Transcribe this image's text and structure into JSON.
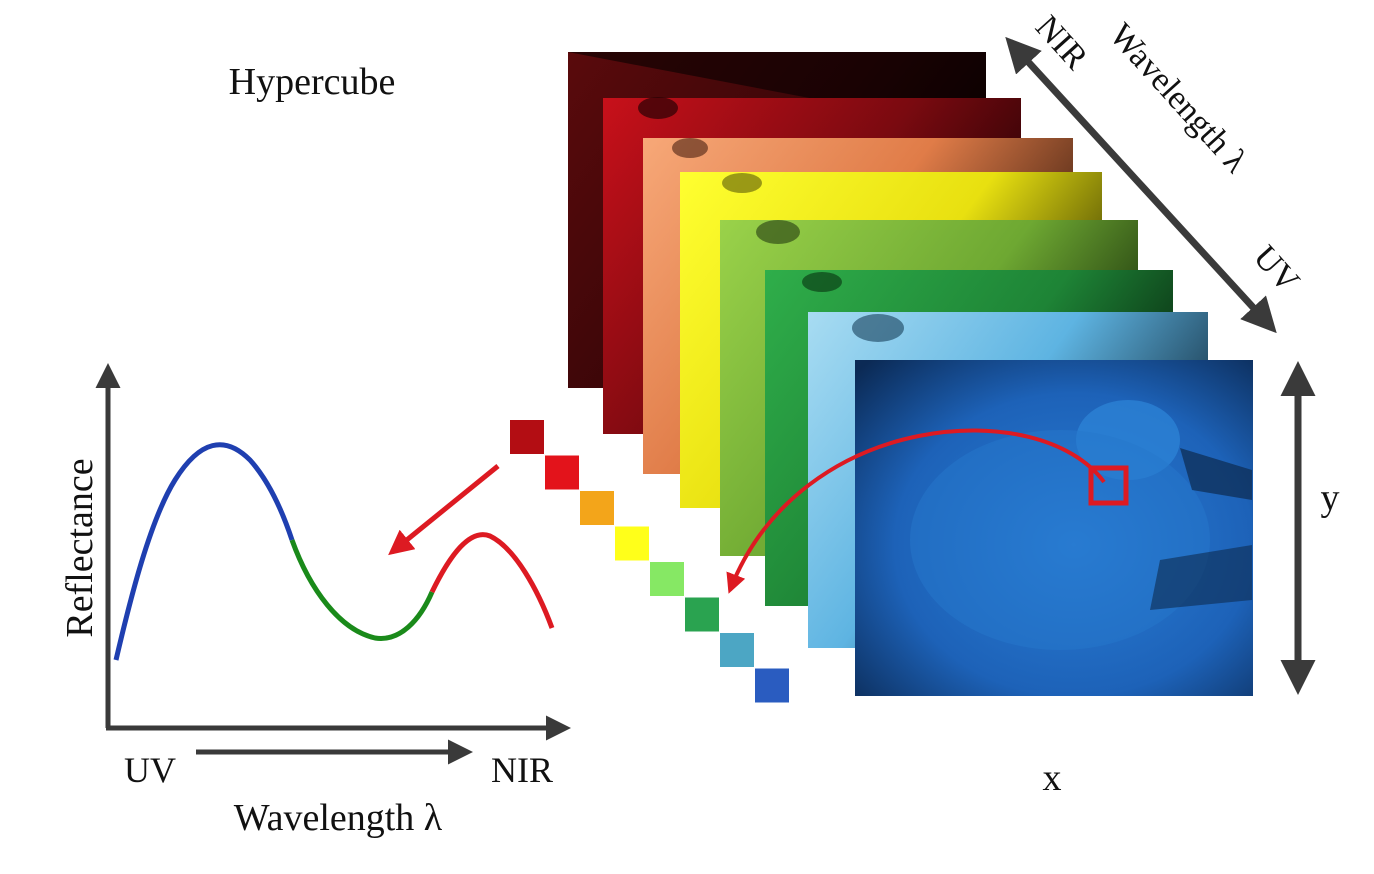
{
  "title": "Hypercube",
  "stack_axis": {
    "near_end": "NIR",
    "far_end": "UV",
    "label": "Wavelength λ"
  },
  "image_axes": {
    "x": "x",
    "y": "y"
  },
  "spectrum_plot": {
    "y_label": "Reflectance",
    "x_start": "UV",
    "x_end": "NIR",
    "x_label": "Wavelength λ",
    "curve_colors": [
      "#1f3fb0",
      "#1a8a1a",
      "#dd1a22"
    ]
  },
  "band_colors": [
    "#b30d13",
    "#e3131b",
    "#f3a51a",
    "#ffff1a",
    "#86e864",
    "#2aa350",
    "#4ca6c4",
    "#2a5cc0"
  ],
  "pixel_marker_color": "#dd1a22",
  "arrow_color": "#3a3a3a"
}
